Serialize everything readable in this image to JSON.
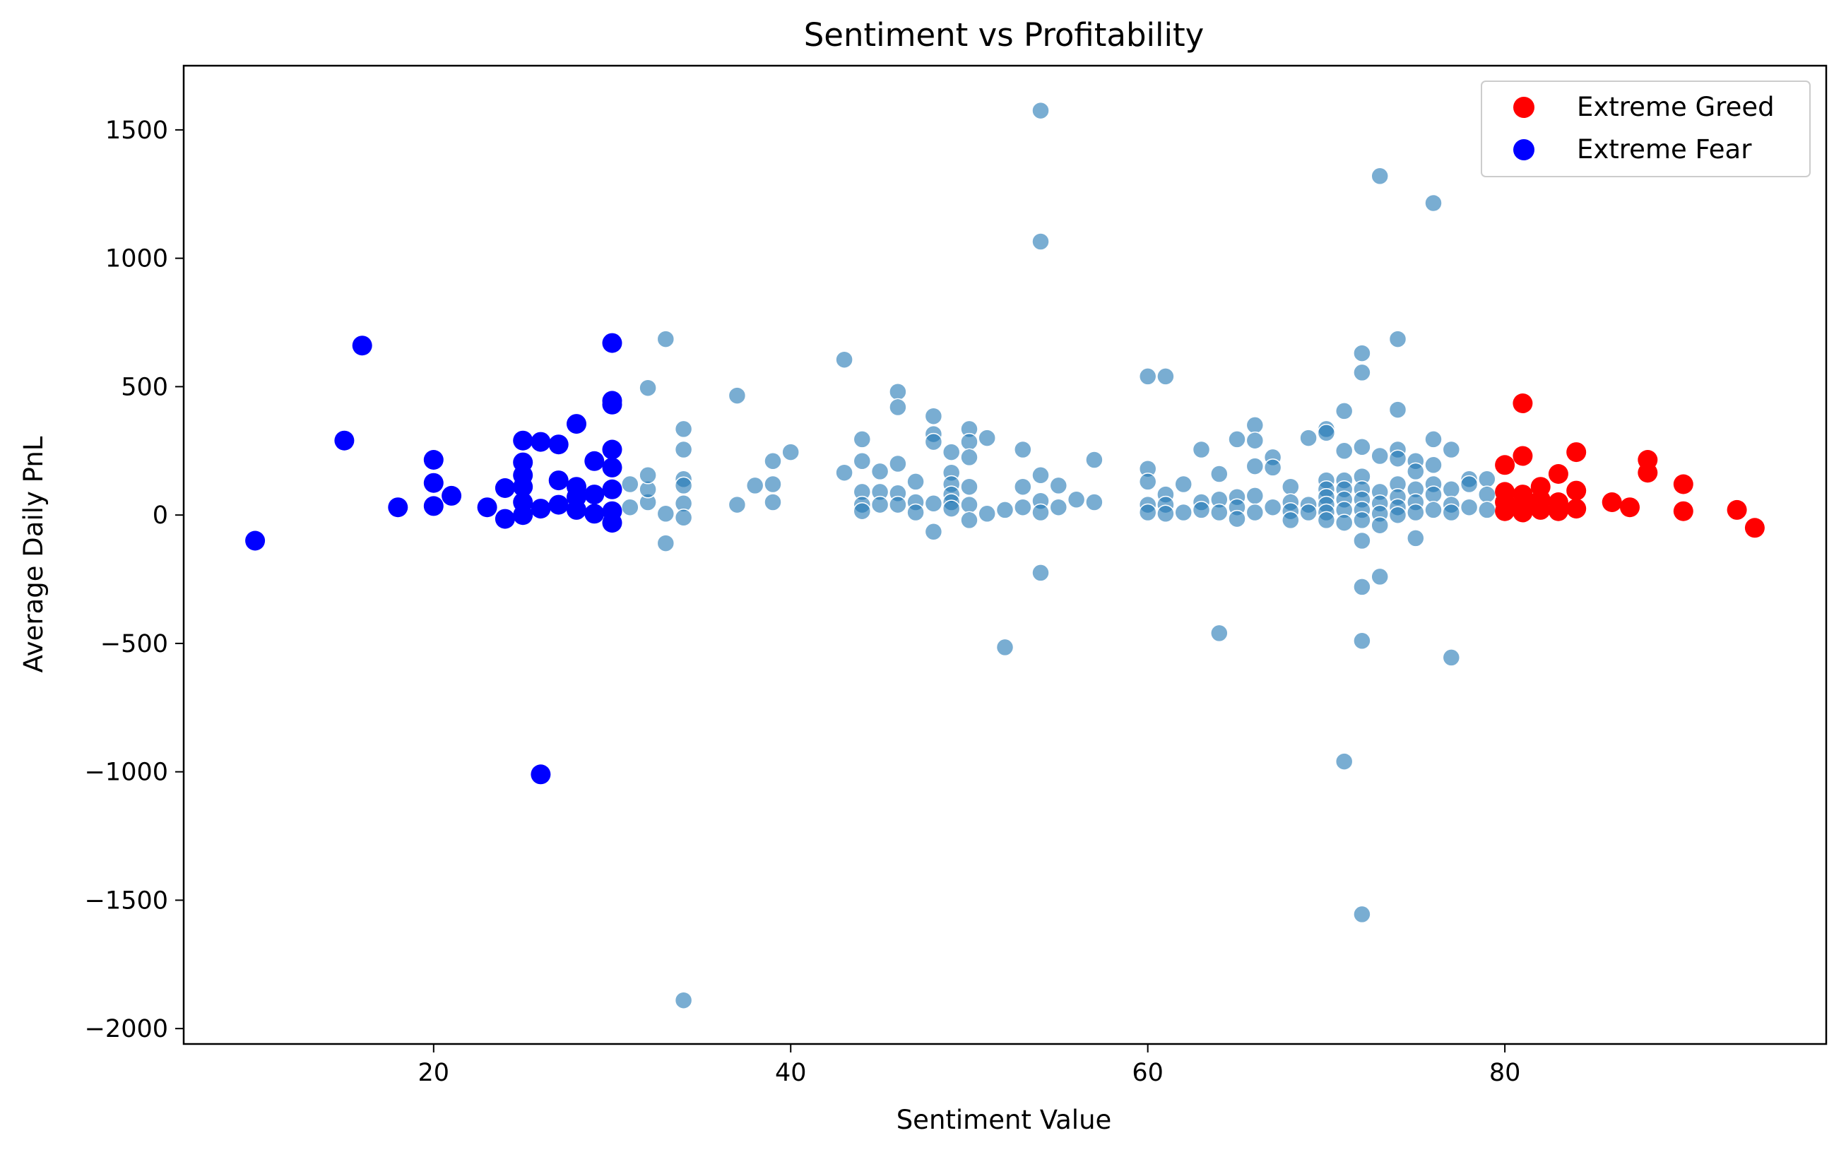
{
  "chart_data": {
    "type": "scatter",
    "title": "Sentiment vs Profitability",
    "xlabel": "Sentiment Value",
    "ylabel": "Average Daily PnL",
    "xlim": [
      6,
      98
    ],
    "ylim": [
      -2060,
      1750
    ],
    "xticks": [
      20,
      40,
      60,
      80
    ],
    "yticks": [
      1500,
      1000,
      500,
      0,
      -500,
      -1000,
      -1500,
      -2000
    ],
    "xtick_labels": [
      "20",
      "40",
      "60",
      "80"
    ],
    "ytick_labels": [
      "1500",
      "1000",
      "500",
      "0",
      "−500",
      "−1000",
      "−1500",
      "−2000"
    ],
    "grid": false,
    "legend_position": "top-right",
    "series": [
      {
        "name": "",
        "color": "#1f77b4",
        "points": [
          [
            31,
            30
          ],
          [
            31,
            120
          ],
          [
            32,
            50
          ],
          [
            32,
            100
          ],
          [
            32,
            155
          ],
          [
            32,
            495
          ],
          [
            33,
            685
          ],
          [
            33,
            5
          ],
          [
            33,
            -110
          ],
          [
            34,
            140
          ],
          [
            34,
            115
          ],
          [
            34,
            45
          ],
          [
            34,
            -10
          ],
          [
            34,
            255
          ],
          [
            34,
            335
          ],
          [
            34,
            -1890
          ],
          [
            37,
            465
          ],
          [
            37,
            40
          ],
          [
            38,
            115
          ],
          [
            39,
            210
          ],
          [
            39,
            120
          ],
          [
            39,
            50
          ],
          [
            40,
            245
          ],
          [
            43,
            605
          ],
          [
            43,
            165
          ],
          [
            44,
            295
          ],
          [
            44,
            210
          ],
          [
            44,
            90
          ],
          [
            44,
            40
          ],
          [
            44,
            15
          ],
          [
            45,
            170
          ],
          [
            45,
            90
          ],
          [
            45,
            40
          ],
          [
            46,
            480
          ],
          [
            46,
            420
          ],
          [
            46,
            200
          ],
          [
            46,
            85
          ],
          [
            46,
            40
          ],
          [
            47,
            130
          ],
          [
            47,
            50
          ],
          [
            47,
            10
          ],
          [
            48,
            385
          ],
          [
            48,
            315
          ],
          [
            48,
            285
          ],
          [
            48,
            45
          ],
          [
            48,
            -65
          ],
          [
            49,
            245
          ],
          [
            49,
            165
          ],
          [
            49,
            120
          ],
          [
            49,
            80
          ],
          [
            49,
            50
          ],
          [
            49,
            25
          ],
          [
            50,
            335
          ],
          [
            50,
            285
          ],
          [
            50,
            225
          ],
          [
            50,
            110
          ],
          [
            50,
            40
          ],
          [
            50,
            -20
          ],
          [
            51,
            300
          ],
          [
            51,
            5
          ],
          [
            52,
            20
          ],
          [
            52,
            -515
          ],
          [
            53,
            255
          ],
          [
            53,
            110
          ],
          [
            53,
            30
          ],
          [
            54,
            1575
          ],
          [
            54,
            1065
          ],
          [
            54,
            155
          ],
          [
            54,
            55
          ],
          [
            54,
            10
          ],
          [
            54,
            -225
          ],
          [
            55,
            115
          ],
          [
            55,
            30
          ],
          [
            56,
            60
          ],
          [
            57,
            215
          ],
          [
            57,
            50
          ],
          [
            60,
            540
          ],
          [
            60,
            180
          ],
          [
            60,
            130
          ],
          [
            60,
            40
          ],
          [
            60,
            10
          ],
          [
            61,
            540
          ],
          [
            61,
            80
          ],
          [
            61,
            40
          ],
          [
            61,
            5
          ],
          [
            62,
            120
          ],
          [
            62,
            10
          ],
          [
            63,
            255
          ],
          [
            63,
            50
          ],
          [
            63,
            20
          ],
          [
            64,
            160
          ],
          [
            64,
            60
          ],
          [
            64,
            10
          ],
          [
            64,
            -460
          ],
          [
            65,
            295
          ],
          [
            65,
            70
          ],
          [
            65,
            30
          ],
          [
            65,
            -15
          ],
          [
            66,
            350
          ],
          [
            66,
            290
          ],
          [
            66,
            190
          ],
          [
            66,
            75
          ],
          [
            66,
            10
          ],
          [
            67,
            225
          ],
          [
            67,
            185
          ],
          [
            67,
            30
          ],
          [
            68,
            110
          ],
          [
            68,
            50
          ],
          [
            68,
            15
          ],
          [
            68,
            -20
          ],
          [
            69,
            300
          ],
          [
            69,
            40
          ],
          [
            69,
            10
          ],
          [
            70,
            335
          ],
          [
            70,
            320
          ],
          [
            70,
            135
          ],
          [
            70,
            100
          ],
          [
            70,
            70
          ],
          [
            70,
            40
          ],
          [
            70,
            10
          ],
          [
            70,
            -20
          ],
          [
            71,
            405
          ],
          [
            71,
            250
          ],
          [
            71,
            135
          ],
          [
            71,
            100
          ],
          [
            71,
            60
          ],
          [
            71,
            20
          ],
          [
            71,
            -30
          ],
          [
            71,
            -960
          ],
          [
            72,
            630
          ],
          [
            72,
            555
          ],
          [
            72,
            265
          ],
          [
            72,
            150
          ],
          [
            72,
            100
          ],
          [
            72,
            60
          ],
          [
            72,
            20
          ],
          [
            72,
            -20
          ],
          [
            72,
            -100
          ],
          [
            72,
            -280
          ],
          [
            72,
            -490
          ],
          [
            72,
            -1555
          ],
          [
            73,
            1320
          ],
          [
            73,
            230
          ],
          [
            73,
            90
          ],
          [
            73,
            45
          ],
          [
            73,
            5
          ],
          [
            73,
            -40
          ],
          [
            73,
            -240
          ],
          [
            74,
            685
          ],
          [
            74,
            410
          ],
          [
            74,
            255
          ],
          [
            74,
            220
          ],
          [
            74,
            120
          ],
          [
            74,
            70
          ],
          [
            74,
            30
          ],
          [
            74,
            0
          ],
          [
            75,
            210
          ],
          [
            75,
            170
          ],
          [
            75,
            100
          ],
          [
            75,
            50
          ],
          [
            75,
            10
          ],
          [
            75,
            -90
          ],
          [
            76,
            1215
          ],
          [
            76,
            295
          ],
          [
            76,
            195
          ],
          [
            76,
            120
          ],
          [
            76,
            80
          ],
          [
            76,
            20
          ],
          [
            77,
            255
          ],
          [
            77,
            100
          ],
          [
            77,
            40
          ],
          [
            77,
            10
          ],
          [
            77,
            -555
          ],
          [
            78,
            140
          ],
          [
            78,
            120
          ],
          [
            78,
            30
          ],
          [
            79,
            140
          ],
          [
            79,
            80
          ],
          [
            79,
            20
          ]
        ]
      },
      {
        "name": "Extreme Greed",
        "color": "#ff0000",
        "points": [
          [
            80,
            195
          ],
          [
            80,
            90
          ],
          [
            80,
            50
          ],
          [
            80,
            15
          ],
          [
            81,
            435
          ],
          [
            81,
            230
          ],
          [
            81,
            80
          ],
          [
            81,
            40
          ],
          [
            81,
            10
          ],
          [
            82,
            110
          ],
          [
            82,
            60
          ],
          [
            82,
            20
          ],
          [
            83,
            160
          ],
          [
            83,
            50
          ],
          [
            83,
            15
          ],
          [
            84,
            245
          ],
          [
            84,
            95
          ],
          [
            84,
            25
          ],
          [
            86,
            50
          ],
          [
            87,
            30
          ],
          [
            88,
            215
          ],
          [
            88,
            165
          ],
          [
            90,
            120
          ],
          [
            90,
            15
          ],
          [
            93,
            20
          ],
          [
            94,
            -50
          ]
        ]
      },
      {
        "name": "Extreme Fear",
        "color": "#0000ff",
        "points": [
          [
            10,
            -100
          ],
          [
            15,
            290
          ],
          [
            16,
            660
          ],
          [
            18,
            30
          ],
          [
            20,
            215
          ],
          [
            20,
            125
          ],
          [
            20,
            35
          ],
          [
            21,
            75
          ],
          [
            23,
            30
          ],
          [
            24,
            105
          ],
          [
            24,
            -15
          ],
          [
            25,
            290
          ],
          [
            25,
            205
          ],
          [
            25,
            155
          ],
          [
            25,
            110
          ],
          [
            25,
            50
          ],
          [
            25,
            0
          ],
          [
            26,
            285
          ],
          [
            26,
            25
          ],
          [
            26,
            -1010
          ],
          [
            27,
            275
          ],
          [
            27,
            135
          ],
          [
            27,
            40
          ],
          [
            28,
            355
          ],
          [
            28,
            110
          ],
          [
            28,
            70
          ],
          [
            28,
            20
          ],
          [
            29,
            210
          ],
          [
            29,
            80
          ],
          [
            29,
            5
          ],
          [
            30,
            670
          ],
          [
            30,
            445
          ],
          [
            30,
            430
          ],
          [
            30,
            255
          ],
          [
            30,
            185
          ],
          [
            30,
            100
          ],
          [
            30,
            15
          ],
          [
            30,
            -30
          ]
        ]
      }
    ]
  }
}
